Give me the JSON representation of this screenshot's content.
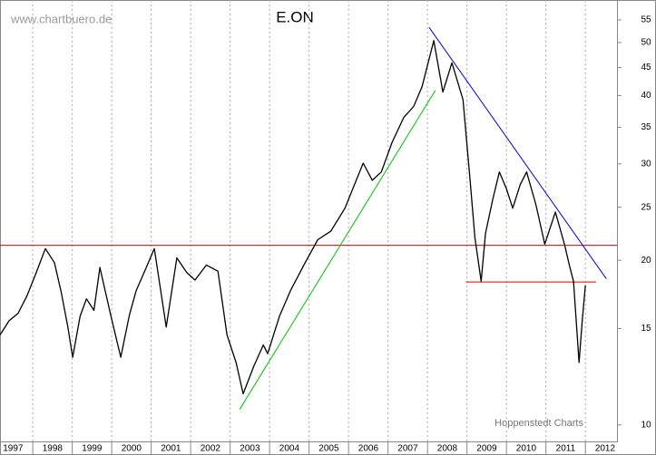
{
  "chart_data": {
    "type": "line",
    "title": "E.ON",
    "watermark": "www.chartbuero.de",
    "source": "Hoppenstedt Charts",
    "ylog": true,
    "grid": true,
    "color": "#000000",
    "xlim": [
      1997.17,
      2012.8
    ],
    "ylim": [
      9.33,
      59.8
    ],
    "xticks": [
      1997,
      1998,
      1999,
      2000,
      2001,
      2002,
      2003,
      2004,
      2005,
      2006,
      2007,
      2008,
      2009,
      2010,
      2011,
      2012
    ],
    "yticks": [
      10,
      15,
      20,
      25,
      30,
      35,
      40,
      45,
      50,
      55
    ],
    "x": [
      1997.17,
      1997.4,
      1997.63,
      1997.85,
      1998.09,
      1998.32,
      1998.55,
      1998.72,
      1998.89,
      1999.01,
      1999.2,
      1999.36,
      1999.55,
      1999.7,
      1999.98,
      2000.23,
      2000.45,
      2000.62,
      2000.85,
      2001.08,
      2001.38,
      2001.65,
      2001.9,
      2002.11,
      2002.4,
      2002.69,
      2002.92,
      2003.15,
      2003.33,
      2003.6,
      2003.84,
      2003.95,
      2004.25,
      2004.53,
      2004.9,
      2005.22,
      2005.55,
      2005.91,
      2006.15,
      2006.37,
      2006.6,
      2006.83,
      2007.1,
      2007.4,
      2007.65,
      2007.86,
      2008.16,
      2008.39,
      2008.62,
      2008.9,
      2009.08,
      2009.2,
      2009.36,
      2009.47,
      2009.65,
      2009.82,
      2010.0,
      2010.16,
      2010.35,
      2010.51,
      2010.75,
      2010.97,
      2011.24,
      2011.47,
      2011.6,
      2011.7,
      2011.84,
      2011.92,
      2012.0
    ],
    "values": [
      14.6,
      15.5,
      16.0,
      17.2,
      19.0,
      21.0,
      19.8,
      17.5,
      15.1,
      13.3,
      15.8,
      17.0,
      16.2,
      19.4,
      15.8,
      13.3,
      15.9,
      17.6,
      19.2,
      21.0,
      15.1,
      20.2,
      19.0,
      18.4,
      19.6,
      19.1,
      14.6,
      13.0,
      11.4,
      12.8,
      14.0,
      13.5,
      15.8,
      17.6,
      19.8,
      21.8,
      22.6,
      24.9,
      27.5,
      30.1,
      28.0,
      29.0,
      32.8,
      36.5,
      38.2,
      41.5,
      50.4,
      40.6,
      45.9,
      39.3,
      27.9,
      22.0,
      18.3,
      22.4,
      25.8,
      29.0,
      27.0,
      24.9,
      27.5,
      29.0,
      25.2,
      21.4,
      24.5,
      21.4,
      19.5,
      18.3,
      13.0,
      15.5,
      18.0
    ],
    "lines": [
      {
        "color": "#e00000",
        "x": [
          1997.17,
          2012.8
        ],
        "y": [
          21.3,
          21.3
        ]
      },
      {
        "color": "#e00000",
        "x": [
          2008.98,
          2012.27
        ],
        "y": [
          18.25,
          18.25
        ]
      },
      {
        "color": "#00c000",
        "x": [
          2003.24,
          2008.2
        ],
        "y": [
          10.67,
          40.9
        ]
      },
      {
        "color": "#0000e0",
        "x": [
          2008.04,
          2012.53
        ],
        "y": [
          53.3,
          18.5
        ]
      }
    ]
  }
}
